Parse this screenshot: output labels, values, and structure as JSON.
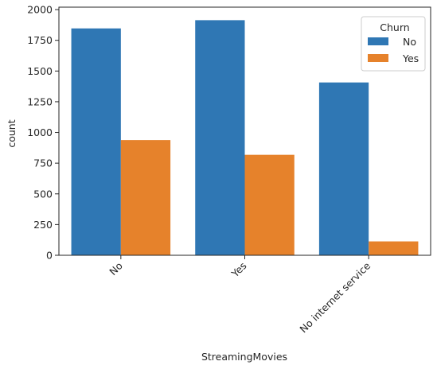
{
  "chart_data": {
    "type": "bar",
    "title": "",
    "xlabel": "StreamingMovies",
    "ylabel": "count",
    "categories": [
      "No",
      "Yes",
      "No internet service"
    ],
    "series": [
      {
        "name": "No",
        "color": "#2f77b4",
        "values": [
          1847,
          1914,
          1407
        ]
      },
      {
        "name": "Yes",
        "color": "#e6822b",
        "values": [
          938,
          818,
          113
        ]
      }
    ],
    "ylim": [
      0,
      2020
    ],
    "yticks": [
      0,
      250,
      500,
      750,
      1000,
      1250,
      1500,
      1750,
      2000
    ],
    "grid": false,
    "legend": {
      "title": "Churn",
      "placement": "top-right"
    }
  }
}
